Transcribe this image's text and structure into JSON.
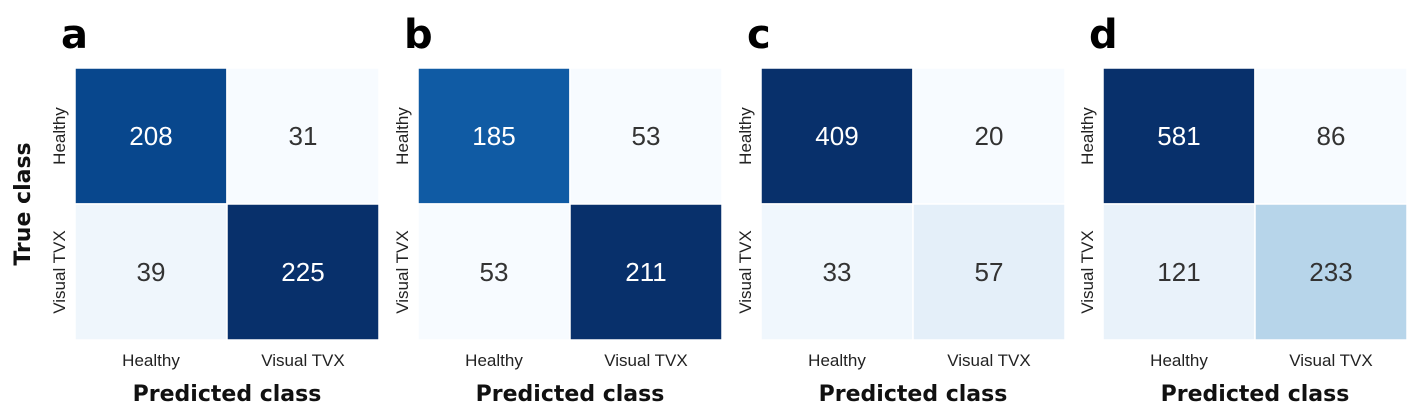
{
  "colors": {
    "colormap": "Blues",
    "low": "#f7fbff",
    "high": "#08306b",
    "text_dark": "#333333",
    "text_light": "#ffffff"
  },
  "chart_data": [
    {
      "type": "heatmap",
      "panel": "a",
      "rows": [
        "Healthy",
        "Visual TVX"
      ],
      "cols": [
        "Healthy",
        "Visual TVX"
      ],
      "values": [
        [
          208,
          31
        ],
        [
          39,
          225
        ]
      ],
      "xlabel": "Predicted class",
      "ylabel": "True class"
    },
    {
      "type": "heatmap",
      "panel": "b",
      "rows": [
        "Healthy",
        "Visual TVX"
      ],
      "cols": [
        "Healthy",
        "Visual TVX"
      ],
      "values": [
        [
          185,
          53
        ],
        [
          53,
          211
        ]
      ],
      "xlabel": "Predicted class",
      "ylabel": ""
    },
    {
      "type": "heatmap",
      "panel": "c",
      "rows": [
        "Healthy",
        "Visual TVX"
      ],
      "cols": [
        "Healthy",
        "Visual TVX"
      ],
      "values": [
        [
          409,
          20
        ],
        [
          33,
          57
        ]
      ],
      "xlabel": "Predicted class",
      "ylabel": ""
    },
    {
      "type": "heatmap",
      "panel": "d",
      "rows": [
        "Healthy",
        "Visual TVX"
      ],
      "cols": [
        "Healthy",
        "Visual TVX"
      ],
      "values": [
        [
          581,
          86
        ],
        [
          121,
          233
        ]
      ],
      "xlabel": "Predicted class",
      "ylabel": ""
    }
  ]
}
